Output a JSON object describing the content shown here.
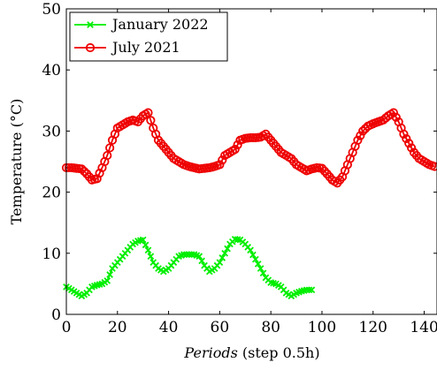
{
  "chart_data": {
    "type": "line",
    "xlabel_italic": "Periods",
    "xlabel_rest": " (step 0.5h)",
    "ylabel": "Temperature (°C)",
    "xlim": [
      0,
      145
    ],
    "ylim": [
      0,
      50
    ],
    "x_ticks": [
      "0",
      "20",
      "40",
      "60",
      "80",
      "100",
      "120",
      "140"
    ],
    "y_ticks": [
      "0",
      "10",
      "20",
      "30",
      "40",
      "50"
    ],
    "legend_position": "top-left",
    "series": [
      {
        "name": "January 2022",
        "color": "#00ee00",
        "marker": "x",
        "x": [
          0,
          2,
          4,
          6,
          8,
          10,
          12,
          14,
          16,
          18,
          20,
          22,
          24,
          26,
          28,
          30,
          32,
          34,
          36,
          38,
          40,
          42,
          44,
          46,
          48,
          50,
          52,
          54,
          56,
          58,
          60,
          62,
          64,
          66,
          68,
          70,
          72,
          74,
          76,
          78,
          80,
          82,
          84,
          86,
          88,
          90,
          92,
          94,
          96
        ],
        "y": [
          4.5,
          4.0,
          3.5,
          3.0,
          3.5,
          4.5,
          4.8,
          5.0,
          5.5,
          7.5,
          8.5,
          9.5,
          10.5,
          11.5,
          12.0,
          12.2,
          10.5,
          8.5,
          7.5,
          7.0,
          7.5,
          8.5,
          9.5,
          9.8,
          9.8,
          9.8,
          9.5,
          8.0,
          7.0,
          7.5,
          8.5,
          10.0,
          11.5,
          12.3,
          12.2,
          11.5,
          10.5,
          9.0,
          7.5,
          6.0,
          5.2,
          5.0,
          4.5,
          3.5,
          3.0,
          3.5,
          3.8,
          4.0,
          4.0
        ]
      },
      {
        "name": "July 2021",
        "color": "#ee0000",
        "marker": "o",
        "x": [
          0,
          2,
          4,
          6,
          8,
          10,
          12,
          14,
          16,
          18,
          20,
          22,
          24,
          26,
          28,
          30,
          32,
          34,
          36,
          38,
          40,
          42,
          44,
          46,
          48,
          50,
          52,
          54,
          56,
          58,
          60,
          62,
          64,
          66,
          68,
          70,
          72,
          74,
          76,
          78,
          80,
          82,
          84,
          86,
          88,
          90,
          92,
          94,
          96,
          98,
          100,
          102,
          104,
          106,
          108,
          110,
          112,
          114,
          116,
          118,
          120,
          122,
          124,
          126,
          128,
          130,
          132,
          134,
          136,
          138,
          140,
          142,
          144
        ],
        "y": [
          24.0,
          24.0,
          23.9,
          23.8,
          23.0,
          22.0,
          22.2,
          24.0,
          26.0,
          28.5,
          30.5,
          31.0,
          31.5,
          31.8,
          31.5,
          32.5,
          33.0,
          30.5,
          28.5,
          27.5,
          26.5,
          25.5,
          25.0,
          24.5,
          24.2,
          24.0,
          23.8,
          23.9,
          24.0,
          24.2,
          24.5,
          26.0,
          26.5,
          27.0,
          28.5,
          28.8,
          28.9,
          28.9,
          29.0,
          29.5,
          28.5,
          27.5,
          26.5,
          26.0,
          25.5,
          24.5,
          24.0,
          23.5,
          23.8,
          24.0,
          23.9,
          23.0,
          22.0,
          21.5,
          22.5,
          24.5,
          26.5,
          28.5,
          30.0,
          30.8,
          31.2,
          31.5,
          31.8,
          32.5,
          33.0,
          31.5,
          29.5,
          28.0,
          26.5,
          25.5,
          25.0,
          24.5,
          24.2
        ]
      }
    ]
  }
}
